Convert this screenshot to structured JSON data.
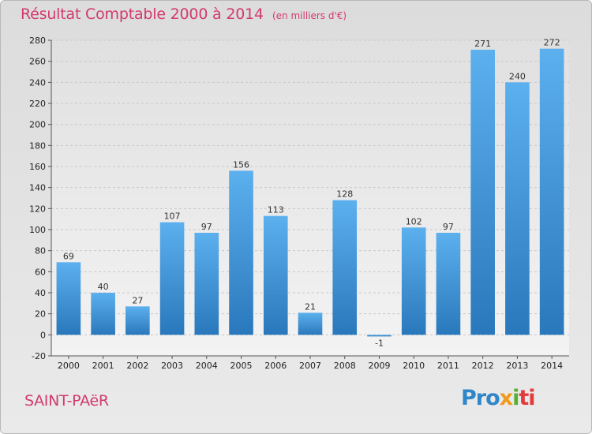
{
  "chart_data": {
    "type": "bar",
    "title": "Résultat Comptable 2000 à 2014",
    "subtitle": "(en milliers d'€)",
    "categories": [
      "2000",
      "2001",
      "2002",
      "2003",
      "2004",
      "2005",
      "2006",
      "2007",
      "2008",
      "2009",
      "2010",
      "2011",
      "2012",
      "2013",
      "2014"
    ],
    "values": [
      69,
      40,
      27,
      107,
      97,
      156,
      113,
      21,
      128,
      -1,
      102,
      97,
      271,
      240,
      272
    ],
    "ylim": [
      -20,
      280
    ],
    "yticks": [
      -20,
      0,
      20,
      40,
      60,
      80,
      100,
      120,
      140,
      160,
      180,
      200,
      220,
      240,
      260,
      280
    ],
    "grid": true,
    "bar_color": "#3a8fd6",
    "xlabel": "",
    "ylabel": ""
  },
  "footer": {
    "place": "SAINT-PAëR",
    "logo": [
      "Pro",
      "x",
      "i",
      "ti"
    ]
  },
  "colors": {
    "accent": "#d23a6c"
  }
}
